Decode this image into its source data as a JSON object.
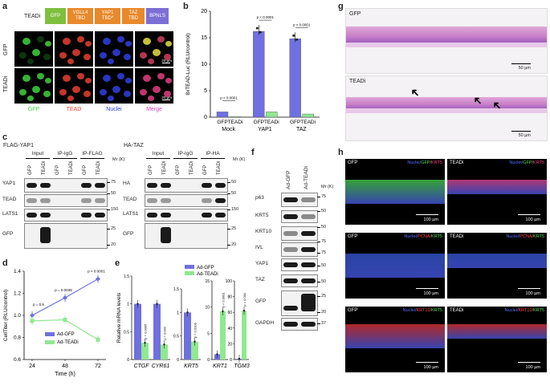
{
  "panel_labels": {
    "a": "a",
    "b": "b",
    "c": "c",
    "d": "d",
    "e": "e",
    "f": "f",
    "g": "g",
    "h": "h"
  },
  "construct": {
    "name": "TEADi",
    "domains": [
      {
        "label": "GFP",
        "color": "#7fbf3f"
      },
      {
        "label": "VGLL4\nTBD",
        "color": "#e8892b"
      },
      {
        "label": "YAP1\nTBD*",
        "color": "#e8892b"
      },
      {
        "label": "TAZ\nTBD",
        "color": "#e8892b"
      },
      {
        "label": "BPNLS",
        "color": "#7b6fd6"
      }
    ]
  },
  "micro": {
    "rows": [
      "GFP",
      "TEADi"
    ],
    "cols": [
      "GFP",
      "TEAD",
      "Nuclei",
      "Merge"
    ],
    "scale": "20 µm",
    "col_colors": [
      "#3fd13f",
      "#e84030",
      "#3040e0",
      "#e040c0"
    ]
  },
  "chart_b": {
    "type": "bar",
    "ylabel": "8xTEAD-Luc (RLU/control)",
    "ylim": [
      0,
      20
    ],
    "yticks": [
      0,
      5,
      10,
      15,
      20
    ],
    "groups": [
      "Mock",
      "YAP1",
      "TAZ"
    ],
    "bar_labels": [
      "GFP",
      "TEADi"
    ],
    "series": [
      {
        "name": "GFP",
        "color": "#7070e0",
        "values": [
          1.0,
          16.2,
          14.8
        ]
      },
      {
        "name": "TEADi",
        "color": "#90e890",
        "values": [
          0.1,
          1.0,
          0.6
        ]
      }
    ],
    "pvalues": [
      "p < 0.0001",
      "p < 0.0001",
      "p < 0.0001"
    ]
  },
  "blot_c": {
    "left": {
      "title": "FLAG-YAP1",
      "groups": [
        "Input",
        "IP-IgG",
        "IP-FLAG"
      ],
      "rows": [
        "YAP1",
        "TEAD",
        "LATS1",
        "GFP"
      ],
      "mw": [
        "75",
        "50",
        "150",
        "25",
        "20"
      ],
      "lanes": [
        "GFP",
        "TEADi",
        "GFP",
        "TEADi",
        "GFP",
        "TEADi"
      ]
    },
    "right": {
      "title": "HA-TAZ",
      "groups": [
        "Input",
        "IP-IgG",
        "IP-HA"
      ],
      "rows": [
        "HA",
        "TEAD",
        "LATS1",
        "GFP"
      ],
      "mw": [
        "50",
        "50",
        "150",
        "25",
        "20"
      ],
      "lanes": [
        "GFP",
        "TEADi",
        "GFP",
        "TEADi",
        "GFP",
        "TEADi"
      ]
    },
    "mr": "Mr (K)"
  },
  "chart_d": {
    "type": "line",
    "ylabel": "CellTiter (RLU/control)",
    "xlabel": "Time (h)",
    "x": [
      24,
      48,
      72
    ],
    "ylim": [
      0.6,
      1.4
    ],
    "yticks": [
      0.6,
      0.8,
      1.0,
      1.2,
      1.4
    ],
    "series": [
      {
        "name": "Ad-GFP",
        "color": "#7070e0",
        "values": [
          1.0,
          1.16,
          1.33
        ]
      },
      {
        "name": "Ad-TEADi",
        "color": "#90e890",
        "values": [
          0.95,
          0.96,
          0.78
        ]
      }
    ],
    "pvalues": [
      "p = 0.5",
      "p = 0.0038",
      "p < 0.0001"
    ]
  },
  "chart_e": {
    "type": "bar",
    "ylabel": "Relative mRNA levels",
    "legend": [
      "Ad-GFP",
      "Ad-TEADi"
    ],
    "genes": [
      "CTGF",
      "CYR61",
      "KRT5",
      "KRT1",
      "TGM3"
    ],
    "groups": [
      {
        "genes": [
          "CTGF",
          "CYR61"
        ],
        "ylim": [
          0,
          1.5
        ],
        "yticks": [
          0,
          0.5,
          1.0,
          1.5
        ],
        "gfp": [
          1.0,
          1.0
        ],
        "teadi": [
          0.3,
          0.27
        ],
        "p": [
          "p = 0.0005",
          "p = 0.002"
        ]
      },
      {
        "genes": [
          "KRT5"
        ],
        "ylim": [
          0,
          1.5
        ],
        "yticks": [
          0,
          0.5,
          1.0,
          1.5
        ],
        "gfp": [
          1.0
        ],
        "teadi": [
          0.38
        ],
        "p": [
          "p = 0.0109"
        ]
      },
      {
        "genes": [
          "KRT1"
        ],
        "ylim": [
          0,
          15
        ],
        "yticks": [
          0,
          5,
          10,
          15
        ],
        "gfp": [
          1.0
        ],
        "teadi": [
          9.2
        ],
        "p": [
          "p < 0.0001"
        ]
      },
      {
        "genes": [
          "TGM3"
        ],
        "ylim": [
          0,
          100
        ],
        "yticks": [
          0,
          20,
          40,
          60,
          80,
          100
        ],
        "gfp": [
          1.0
        ],
        "teadi": [
          62
        ],
        "p": [
          "p = 0.001"
        ]
      }
    ]
  },
  "blot_f": {
    "lanes": [
      "Ad-GFP",
      "Ad-TEADi"
    ],
    "rows": [
      "p63",
      "KRT5",
      "KRT10",
      "IVL",
      "YAP1",
      "TAZ",
      "GFP",
      "GAPDH"
    ],
    "mw": [
      "75",
      "50",
      "50",
      "75",
      "75",
      "50",
      "50",
      "25",
      "20",
      "37"
    ],
    "mr": "Mr (K)"
  },
  "histo": {
    "rows": [
      "GFP",
      "TEADi"
    ],
    "scale": "50 µm"
  },
  "ihc": {
    "rows": [
      {
        "left": "GFP",
        "right": "TEADi",
        "markers": [
          "Nuclei",
          "GFP",
          "KRT5"
        ],
        "marker_colors": [
          "#5a6cff",
          "#4fe04f",
          "#ff4080"
        ]
      },
      {
        "left": "GFP",
        "right": "TEADi",
        "markers": [
          "Nuclei",
          "PCNA",
          "KRT5"
        ],
        "marker_colors": [
          "#5a6cff",
          "#ff4040",
          "#4fe04f"
        ]
      },
      {
        "left": "GFP",
        "right": "TEADi",
        "markers": [
          "Nuclei",
          "KRT10",
          "KRT5"
        ],
        "marker_colors": [
          "#5a6cff",
          "#ff4040",
          "#4fe04f"
        ]
      }
    ],
    "scale": "100 µm"
  }
}
